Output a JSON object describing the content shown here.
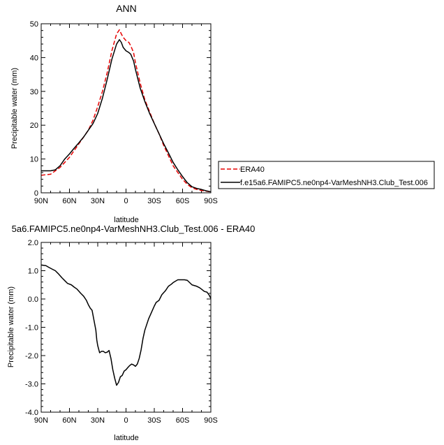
{
  "chart_data": [
    {
      "type": "line",
      "title": "ANN",
      "xlabel": "latitude",
      "ylabel": "Precipitable water (mm)",
      "xlim": [
        90,
        -90
      ],
      "ylim": [
        0,
        50
      ],
      "x_ticks": [
        90,
        60,
        30,
        0,
        -30,
        -60,
        -90
      ],
      "x_tick_labels": [
        "90N",
        "60N",
        "30N",
        "0",
        "30S",
        "60S",
        "90S"
      ],
      "y_ticks": [
        0,
        10,
        20,
        30,
        40,
        50
      ],
      "y_tick_labels": [
        "0",
        "10",
        "20",
        "30",
        "40",
        "50"
      ],
      "legend_position": "right",
      "series": [
        {
          "name": "ERA40",
          "color": "#e60000",
          "dash": "dashed",
          "x": [
            90,
            80,
            75,
            70,
            65,
            60,
            55,
            50,
            45,
            40,
            35,
            30,
            25,
            20,
            15,
            10,
            7,
            5,
            3,
            0,
            -3,
            -5,
            -8,
            -10,
            -15,
            -20,
            -25,
            -30,
            -35,
            -40,
            -45,
            -50,
            -55,
            -60,
            -65,
            -70,
            -75,
            -80,
            -85,
            -90
          ],
          "y": [
            5.2,
            5.5,
            6.5,
            7.5,
            9.0,
            10.5,
            12.5,
            14.5,
            16.5,
            18.5,
            21.5,
            25.5,
            30.0,
            35.5,
            42.0,
            47.0,
            48.2,
            47.0,
            46.0,
            45.0,
            44.5,
            43.5,
            41.5,
            38.5,
            32.5,
            27.5,
            24.0,
            20.5,
            17.5,
            14.0,
            11.0,
            8.0,
            6.0,
            4.0,
            2.5,
            1.5,
            1.0,
            0.7,
            0.5,
            0.3
          ]
        },
        {
          "name": "f.e15a6.FAMIPC5.ne0np4-VarMeshNH3.Club_Test.006",
          "color": "#000000",
          "dash": "solid",
          "x": [
            90,
            80,
            75,
            70,
            65,
            60,
            55,
            50,
            45,
            40,
            35,
            30,
            25,
            20,
            15,
            10,
            7,
            5,
            3,
            0,
            -3,
            -5,
            -8,
            -10,
            -15,
            -20,
            -25,
            -30,
            -35,
            -40,
            -45,
            -50,
            -55,
            -60,
            -65,
            -70,
            -75,
            -80,
            -85,
            -90
          ],
          "y": [
            6.5,
            6.5,
            6.8,
            8.0,
            10.0,
            11.5,
            13.2,
            14.8,
            16.5,
            18.5,
            20.5,
            23.5,
            28.0,
            33.5,
            39.5,
            44.0,
            45.3,
            44.5,
            43.0,
            42.0,
            41.5,
            41.0,
            39.0,
            36.5,
            31.0,
            27.0,
            23.5,
            20.5,
            17.5,
            14.5,
            11.8,
            9.0,
            6.8,
            4.8,
            3.0,
            1.8,
            1.3,
            1.0,
            0.6,
            0.3
          ]
        }
      ]
    },
    {
      "type": "line",
      "title": "5a6.FAMIPC5.ne0np4-VarMeshNH3.Club_Test.006 - ERA40",
      "xlabel": "latitude",
      "ylabel": "Precipitable water (mm)",
      "xlim": [
        90,
        -90
      ],
      "ylim": [
        -4,
        2
      ],
      "x_ticks": [
        90,
        60,
        30,
        0,
        -30,
        -60,
        -90
      ],
      "x_tick_labels": [
        "90N",
        "60N",
        "30N",
        "0",
        "30S",
        "60S",
        "90S"
      ],
      "y_ticks": [
        2,
        1,
        0,
        -1,
        -2,
        -3,
        -4
      ],
      "y_tick_labels": [
        "2.0",
        "1.0",
        "0.0",
        "-1.0",
        "-2.0",
        "-3.0",
        "-4.0"
      ],
      "series": [
        {
          "color": "#000000",
          "dash": "solid",
          "x": [
            90,
            85,
            82,
            78,
            75,
            72,
            68,
            65,
            62,
            58,
            55,
            52,
            48,
            45,
            42,
            40,
            38,
            36,
            34,
            32,
            31,
            30,
            28,
            26,
            24,
            22,
            20,
            18,
            16,
            14,
            12,
            10,
            8,
            6,
            4,
            2,
            0,
            -2,
            -4,
            -6,
            -8,
            -10,
            -12,
            -14,
            -16,
            -18,
            -20,
            -22,
            -24,
            -26,
            -28,
            -30,
            -32,
            -35,
            -38,
            -42,
            -45,
            -48,
            -50,
            -52,
            -55,
            -58,
            -62,
            -65,
            -70,
            -75,
            -78,
            -80,
            -83,
            -86,
            -88,
            -90
          ],
          "y": [
            1.2,
            1.18,
            1.12,
            1.05,
            1.0,
            0.9,
            0.75,
            0.65,
            0.55,
            0.5,
            0.42,
            0.35,
            0.2,
            0.1,
            -0.05,
            -0.2,
            -0.32,
            -0.4,
            -0.75,
            -1.1,
            -1.45,
            -1.65,
            -1.9,
            -1.85,
            -1.85,
            -1.9,
            -1.88,
            -1.82,
            -2.1,
            -2.5,
            -2.8,
            -3.05,
            -2.95,
            -2.75,
            -2.7,
            -2.55,
            -2.5,
            -2.42,
            -2.35,
            -2.3,
            -2.33,
            -2.38,
            -2.3,
            -2.1,
            -1.8,
            -1.4,
            -1.1,
            -0.9,
            -0.7,
            -0.55,
            -0.4,
            -0.25,
            -0.12,
            -0.05,
            0.15,
            0.3,
            0.45,
            0.52,
            0.58,
            0.62,
            0.68,
            0.68,
            0.68,
            0.66,
            0.5,
            0.45,
            0.4,
            0.35,
            0.27,
            0.24,
            0.15,
            0.02
          ]
        }
      ]
    }
  ]
}
